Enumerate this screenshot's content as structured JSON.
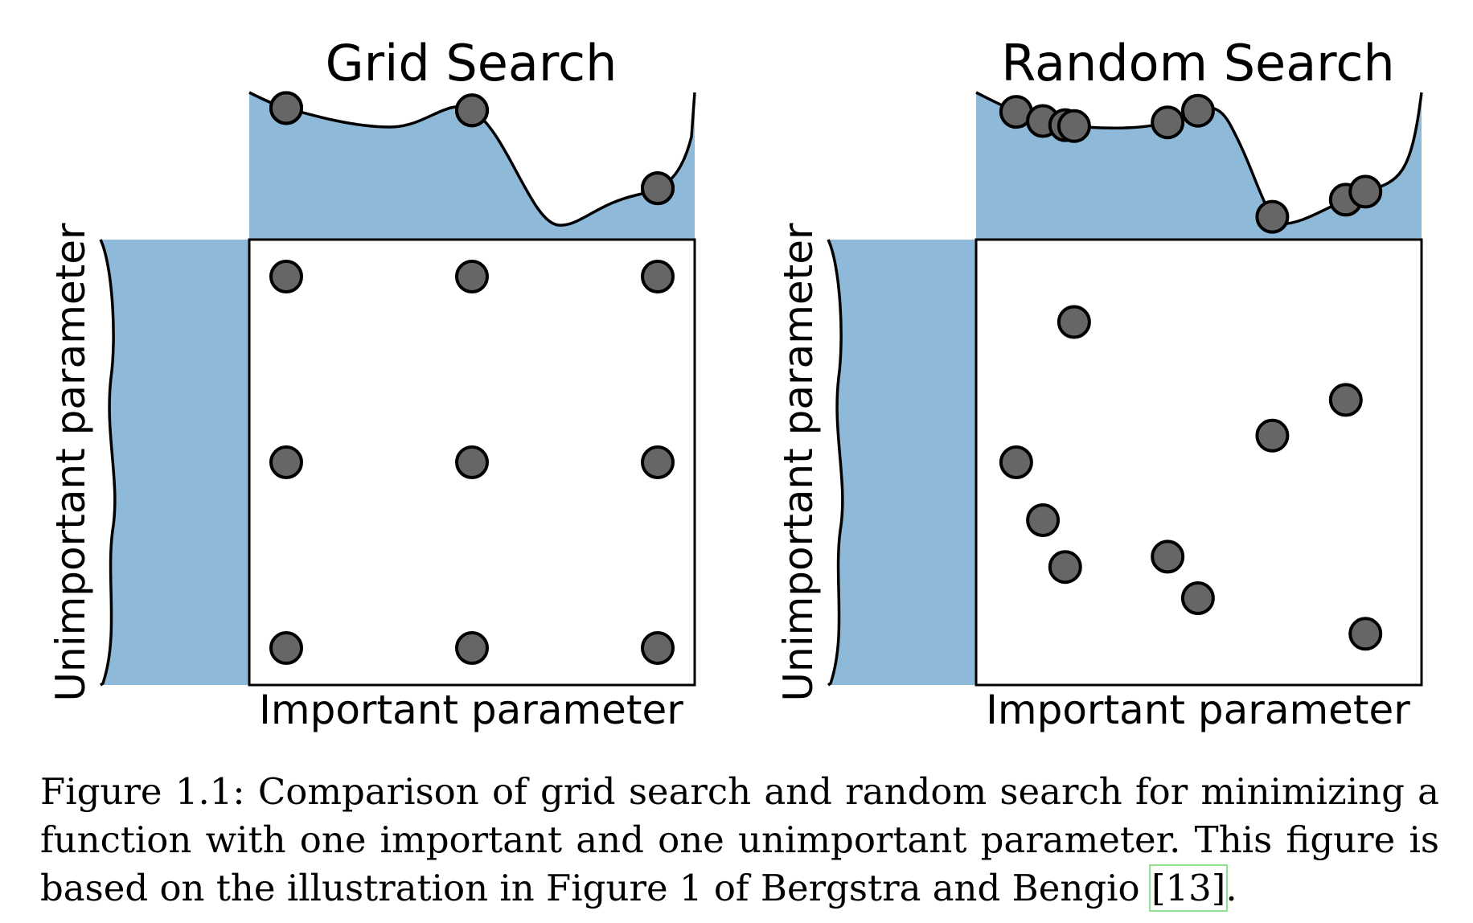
{
  "panels": [
    {
      "title": "Grid Search",
      "xlabel": "Important parameter",
      "ylabel": "Unimportant parameter",
      "points": [
        [
          0.083,
          0.917
        ],
        [
          0.5,
          0.917
        ],
        [
          0.917,
          0.917
        ],
        [
          0.083,
          0.5
        ],
        [
          0.5,
          0.5
        ],
        [
          0.917,
          0.5
        ],
        [
          0.083,
          0.083
        ],
        [
          0.5,
          0.083
        ],
        [
          0.917,
          0.083
        ]
      ]
    },
    {
      "title": "Random Search",
      "xlabel": "Important parameter",
      "ylabel": "Unimportant parameter",
      "points": [
        [
          0.09,
          0.5
        ],
        [
          0.15,
          0.37
        ],
        [
          0.2,
          0.265
        ],
        [
          0.22,
          0.815
        ],
        [
          0.43,
          0.288
        ],
        [
          0.498,
          0.195
        ],
        [
          0.665,
          0.56
        ],
        [
          0.83,
          0.64
        ],
        [
          0.874,
          0.115
        ]
      ]
    }
  ],
  "colors": {
    "fill": "#8fb9d9",
    "point": "#666666",
    "outline": "#000000"
  },
  "caption": {
    "label": "Figure 1.1:",
    "text": "Comparison of grid search and random search for minimizing a function with one important and one unimportant parameter. This figure is based on the illustration in Figure 1 of Bergstra and Bengio",
    "citation": "[13]",
    "end": "."
  }
}
